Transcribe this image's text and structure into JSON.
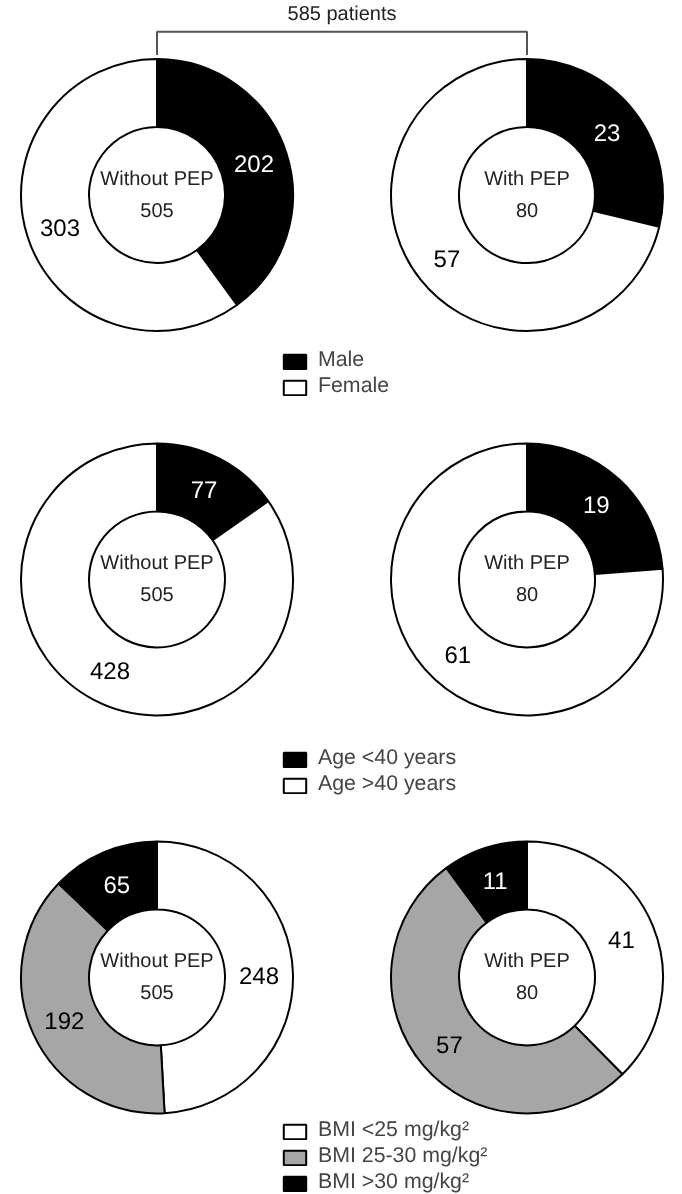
{
  "chart_data": [
    {
      "type": "donut",
      "title": "585 patients",
      "categories": [
        "Male",
        "Female"
      ],
      "colors": [
        "#000000",
        "#ffffff"
      ],
      "series": [
        {
          "values": [
            202,
            303
          ]
        },
        {
          "values": [
            23,
            57
          ]
        }
      ],
      "annotations": [
        "Without PEP",
        "505",
        "With PEP",
        "80"
      ],
      "data_labels": true,
      "legend": "bottom"
    },
    {
      "type": "donut",
      "categories": [
        "Age <40 years",
        "Age >40 years"
      ],
      "colors": [
        "#000000",
        "#ffffff"
      ],
      "series": [
        {
          "values": [
            77,
            428
          ]
        },
        {
          "values": [
            19,
            61
          ]
        }
      ],
      "annotations": [
        "Without PEP",
        "505",
        "With PEP",
        "80"
      ],
      "data_labels": true,
      "legend": "bottom"
    },
    {
      "type": "donut",
      "categories": [
        "BMI <25 mg/kg²",
        "BMI 25-30 mg/kg²",
        "BMI >30 mg/kg²"
      ],
      "colors": [
        "#ffffff",
        "#a6a6a6",
        "#000000"
      ],
      "series": [
        {
          "values": [
            248,
            192,
            65
          ]
        },
        {
          "values": [
            41,
            57,
            11
          ]
        }
      ],
      "annotations": [
        "Without PEP",
        "505",
        "With PEP",
        "80"
      ],
      "data_labels": true,
      "legend": "bottom"
    }
  ]
}
